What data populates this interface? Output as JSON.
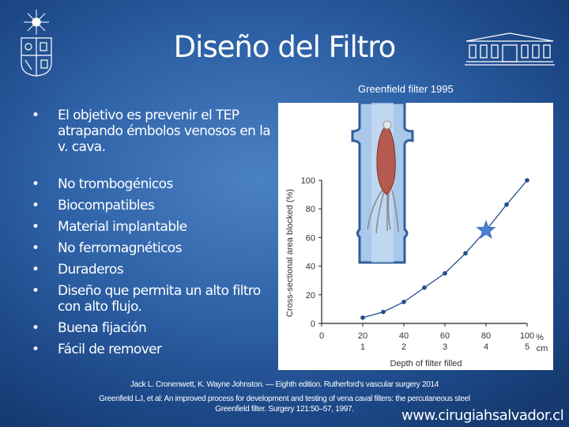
{
  "slide": {
    "title": "Diseño del Filtro",
    "image_caption": "Greenfield filter 1995",
    "bullets": [
      "El objetivo es prevenir el TEP atrapando émbolos venosos en la v. cava.",
      "No trombogénicos",
      "Biocompatibles",
      "Material implantable",
      "No ferromagnéticos",
      "Duraderos",
      "Diseño que permita un alto filtro con alto flujo.",
      "Buena fijación",
      "Fácil de remover"
    ],
    "references": [
      "Jack L. Cronenwett,  K. Wayne Johnston. — Eighth edition.  Rutherford's vascular surgery 2014",
      "Greenfield LJ, et al: An improved process for development  and testing of vena caval filters: the percutaneous steel",
      "Greenfield filter. Surgery 121:50–57, 1997."
    ],
    "website": "www.cirugiahsalvador.cl"
  },
  "chart_data": {
    "type": "line",
    "xlabel": "Depth of filter filled",
    "ylabel": "Cross-sectional area blocked (%)",
    "x": [
      20,
      30,
      40,
      50,
      60,
      70,
      90,
      100
    ],
    "y": [
      4,
      8,
      15,
      25,
      35,
      49,
      83,
      100
    ],
    "highlight": {
      "marker": "star",
      "x": 80,
      "y": 65,
      "color": "#4a7fd0"
    },
    "xlim": [
      0,
      100
    ],
    "ylim": [
      0,
      100
    ],
    "xticks": [
      0,
      20,
      40,
      60,
      80,
      100
    ],
    "xticks_cm": [
      "",
      "1",
      "2",
      "3",
      "4",
      "5"
    ],
    "x_unit_pct": "%",
    "x_unit_cm": "cm",
    "yticks": [
      0,
      20,
      40,
      60,
      80,
      100
    ],
    "line_color": "#1f4e8c",
    "grid": false
  }
}
